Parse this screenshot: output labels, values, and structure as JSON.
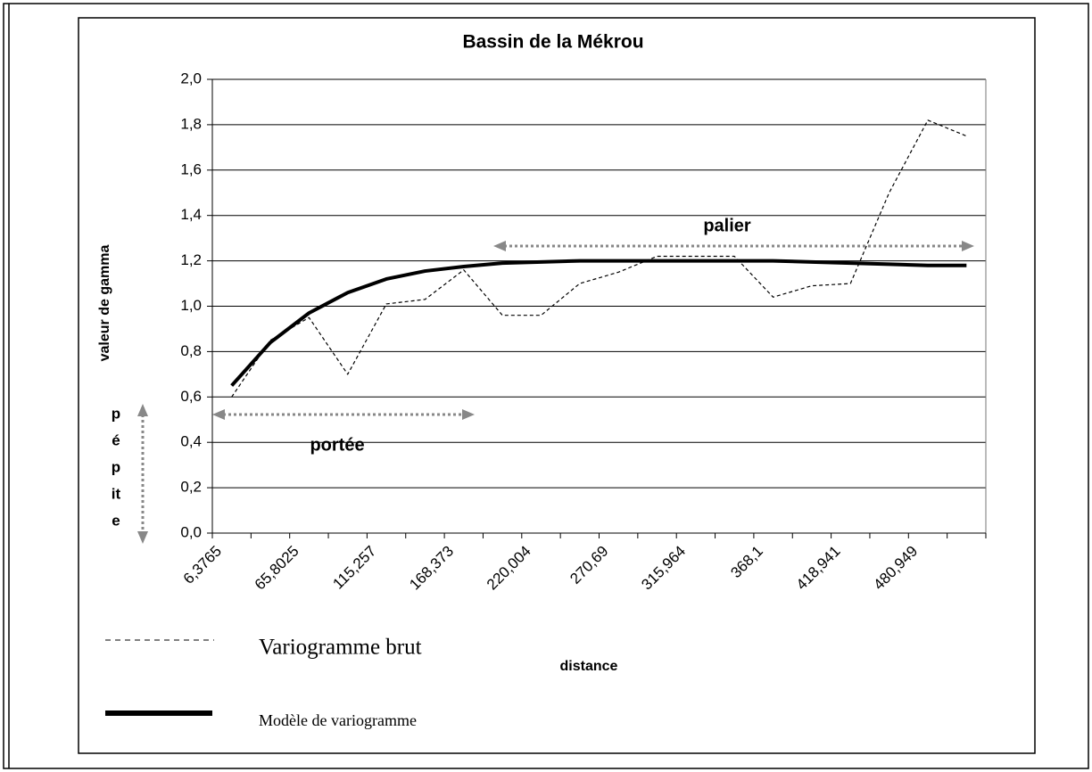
{
  "chart_data": {
    "type": "line",
    "title": "Bassin de la Mékrou",
    "x_label": "distance",
    "y_label": "valeur de gamma",
    "categories": [
      "6,3765",
      null,
      "65,8025",
      null,
      "115,257",
      null,
      "168,373",
      null,
      "220,004",
      null,
      "270,69",
      null,
      "315,964",
      null,
      "368,1",
      null,
      "418,941",
      null,
      "480,949",
      null
    ],
    "series": [
      {
        "name": "Variogramme brut",
        "color": "#000000",
        "style": "dashed",
        "values": [
          0.6,
          0.85,
          0.95,
          0.7,
          1.01,
          1.03,
          1.16,
          0.96,
          0.96,
          1.1,
          1.15,
          1.22,
          1.22,
          1.22,
          1.04,
          1.09,
          1.1,
          1.5,
          1.82,
          1.75
        ]
      },
      {
        "name": "Modèle de variogramme",
        "color": "#000000",
        "style": "solid",
        "values": [
          0.65,
          0.84,
          0.97,
          1.06,
          1.12,
          1.155,
          1.175,
          1.19,
          1.195,
          1.2,
          1.2,
          1.2,
          1.2,
          1.2,
          1.2,
          1.195,
          1.19,
          1.185,
          1.18,
          1.18
        ]
      }
    ],
    "ylim": [
      0,
      2
    ],
    "yticks": [
      {
        "value": 0,
        "label": "0,0"
      },
      {
        "value": 0.2,
        "label": "0,2"
      },
      {
        "value": 0.4,
        "label": "0,4"
      },
      {
        "value": 0.6,
        "label": "0,6"
      },
      {
        "value": 0.8,
        "label": "0,8"
      },
      {
        "value": 1,
        "label": "1,0"
      },
      {
        "value": 1.2,
        "label": "1,2"
      },
      {
        "value": 1.4,
        "label": "1,4"
      },
      {
        "value": 1.6,
        "label": "1,6"
      },
      {
        "value": 1.8,
        "label": "1,8"
      },
      {
        "value": 2,
        "label": "2,0"
      }
    ],
    "grid": true,
    "legend": "bottom-left",
    "annotations": {
      "palier": "palier",
      "portee": "portée",
      "pepite": [
        "p",
        "é",
        "p",
        "it",
        "e"
      ]
    }
  }
}
